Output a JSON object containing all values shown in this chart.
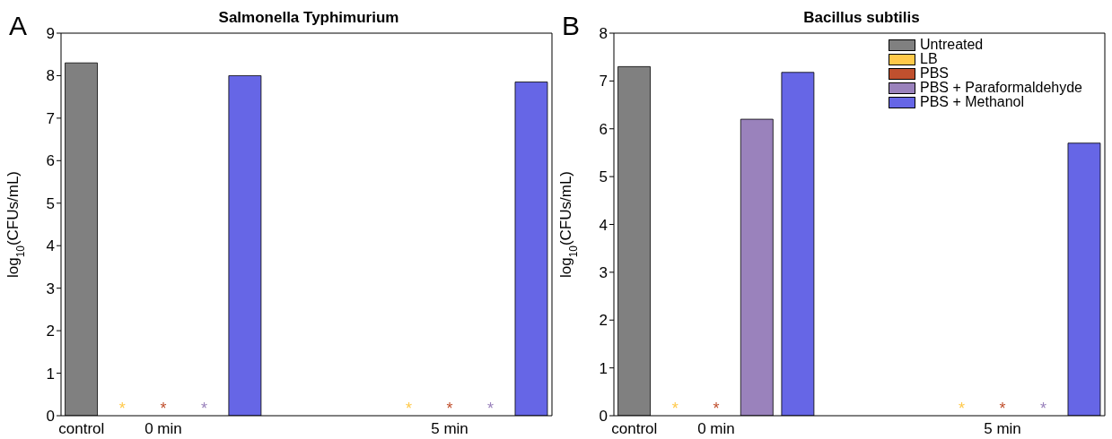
{
  "chart_data": [
    {
      "type": "bar",
      "title": "Salmonella Typhimurium",
      "ylabel": "log$_{10}$(CFUs/mL)",
      "annotations": [
        "A"
      ],
      "stacked": true,
      "legend": false,
      "grid": false,
      "categories": [
        "control",
        null,
        "0 min",
        null,
        null,
        null,
        null,
        null,
        null,
        "5 min",
        null,
        null
      ],
      "ylim": [
        0,
        9
      ],
      "yticks": [
        0,
        1,
        2,
        3,
        4,
        5,
        6,
        7,
        8,
        9
      ],
      "series": [
        {
          "color": "#808080",
          "values": [
            8.3,
            null,
            null,
            null,
            null,
            null,
            null,
            null,
            null,
            null,
            null,
            null
          ]
        },
        {
          "color": "#ffc94a",
          "values": [
            null,
            0,
            null,
            null,
            null,
            null,
            null,
            null,
            0,
            null,
            null,
            null
          ],
          "value_labels": [
            null,
            "*",
            null,
            null,
            null,
            null,
            null,
            null,
            "*",
            null,
            null,
            null
          ]
        },
        {
          "color": "#c0502e",
          "values": [
            null,
            null,
            0,
            null,
            null,
            null,
            null,
            null,
            null,
            0,
            null,
            null
          ],
          "value_labels": [
            null,
            null,
            "*",
            null,
            null,
            null,
            null,
            null,
            null,
            "*",
            null,
            null
          ]
        },
        {
          "color": "#9a82bc",
          "values": [
            null,
            null,
            null,
            0,
            null,
            null,
            null,
            null,
            null,
            null,
            0,
            null
          ],
          "value_labels": [
            null,
            null,
            null,
            "*",
            null,
            null,
            null,
            null,
            null,
            null,
            "*",
            null
          ]
        },
        {
          "color": "#6666e6",
          "values": [
            null,
            null,
            null,
            null,
            8.0,
            null,
            null,
            null,
            null,
            null,
            null,
            7.85
          ]
        }
      ]
    },
    {
      "type": "bar",
      "title": "Bacillus subtilis",
      "ylabel": "log$_{10}$(CFUs/mL)",
      "annotations": [
        "B"
      ],
      "stacked": true,
      "legend": "top right",
      "grid": false,
      "categories": [
        "control",
        null,
        "0 min",
        null,
        null,
        null,
        null,
        null,
        null,
        "5 min",
        null,
        null
      ],
      "ylim": [
        0,
        8
      ],
      "yticks": [
        0,
        1,
        2,
        3,
        4,
        5,
        6,
        7,
        8
      ],
      "series": [
        {
          "name": "Untreated",
          "color": "#808080",
          "values": [
            7.3,
            null,
            null,
            null,
            null,
            null,
            null,
            null,
            null,
            null,
            null,
            null
          ]
        },
        {
          "name": "LB",
          "color": "#ffc94a",
          "values": [
            null,
            0,
            null,
            null,
            null,
            null,
            null,
            null,
            0,
            null,
            null,
            null
          ],
          "value_labels": [
            null,
            "*",
            null,
            null,
            null,
            null,
            null,
            null,
            "*",
            null,
            null,
            null
          ]
        },
        {
          "name": "PBS",
          "color": "#c0502e",
          "values": [
            null,
            null,
            0,
            null,
            null,
            null,
            null,
            null,
            null,
            0,
            null,
            null
          ],
          "value_labels": [
            null,
            null,
            "*",
            null,
            null,
            null,
            null,
            null,
            null,
            "*",
            null,
            null
          ]
        },
        {
          "name": "PBS + Paraformaldehyde",
          "color": "#9a82bc",
          "values": [
            null,
            null,
            null,
            6.2,
            null,
            null,
            null,
            null,
            null,
            null,
            0,
            null
          ],
          "value_labels": [
            null,
            null,
            null,
            null,
            null,
            null,
            null,
            null,
            null,
            null,
            "*",
            null
          ]
        },
        {
          "name": "PBS + Methanol",
          "color": "#6666e6",
          "values": [
            null,
            null,
            null,
            null,
            7.18,
            null,
            null,
            null,
            null,
            null,
            null,
            5.7
          ]
        }
      ]
    }
  ]
}
